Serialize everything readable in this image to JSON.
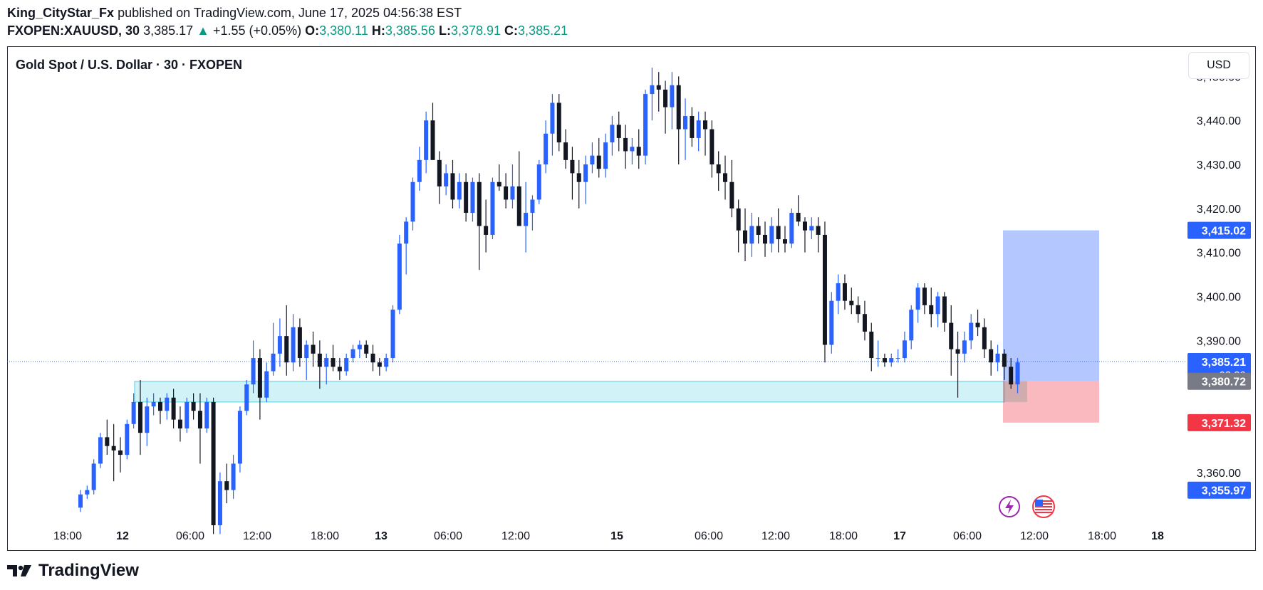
{
  "header": {
    "author": "King_CityStar_Fx",
    "published_text": "published on TradingView.com, June 17, 2025 04:56:38 EST",
    "symbol": "FXOPEN:XAUUSD, 30",
    "last": "3,385.17",
    "change": "+1.55 (+0.05%)",
    "o_label": "O:",
    "o": "3,380.11",
    "h_label": "H:",
    "h": "3,385.56",
    "l_label": "L:",
    "l": "3,378.91",
    "c_label": "C:",
    "c": "3,385.21"
  },
  "chart_title": "Gold Spot / U.S. Dollar · 30 · FXOPEN",
  "currency": "USD",
  "footer": {
    "brand": "TradingView"
  },
  "colors": {
    "up": "#2962ff",
    "down": "#131722",
    "zone": "#b2ebf2",
    "target": "#2962ff",
    "stop": "#f23645",
    "current": "#2962ff"
  },
  "chart_data": {
    "type": "candlestick",
    "ylim": [
      3348,
      3452
    ],
    "y_ticks": [
      "3,360.00",
      "3,390.00",
      "3,400.00",
      "3,410.00",
      "3,420.00",
      "3,430.00",
      "3,440.00",
      "3,450.00"
    ],
    "x_ticks": [
      "18:00",
      "12",
      "06:00",
      "12:00",
      "18:00",
      "13",
      "06:00",
      "12:00",
      "15",
      "06:00",
      "12:00",
      "18:00",
      "17",
      "06:00",
      "12:00",
      "18:00",
      "18"
    ],
    "bold_x_ticks": [
      "12",
      "13",
      "15",
      "17",
      "18"
    ],
    "candles": [
      [
        3352,
        3356,
        3351,
        3355
      ],
      [
        3355,
        3357,
        3354,
        3356
      ],
      [
        3356,
        3363,
        3355,
        3362
      ],
      [
        3362,
        3369,
        3361,
        3368
      ],
      [
        3368,
        3372,
        3364,
        3366
      ],
      [
        3366,
        3371,
        3358,
        3365
      ],
      [
        3365,
        3368,
        3360,
        3364
      ],
      [
        3364,
        3372,
        3363,
        3371
      ],
      [
        3371,
        3378,
        3370,
        3376
      ],
      [
        3376,
        3381,
        3364,
        3369
      ],
      [
        3369,
        3377,
        3366,
        3375
      ],
      [
        3375,
        3378,
        3373,
        3376
      ],
      [
        3376,
        3377,
        3371,
        3374
      ],
      [
        3374,
        3378,
        3372,
        3377
      ],
      [
        3377,
        3379,
        3370,
        3372
      ],
      [
        3372,
        3375,
        3367,
        3370
      ],
      [
        3370,
        3377,
        3369,
        3376
      ],
      [
        3376,
        3378,
        3372,
        3374
      ],
      [
        3374,
        3378,
        3362,
        3370
      ],
      [
        3370,
        3377,
        3369,
        3376
      ],
      [
        3376,
        3377,
        3346,
        3348
      ],
      [
        3348,
        3360,
        3346,
        3358
      ],
      [
        3358,
        3362,
        3353,
        3356
      ],
      [
        3356,
        3364,
        3354,
        3362
      ],
      [
        3362,
        3375,
        3360,
        3374
      ],
      [
        3374,
        3381,
        3373,
        3380
      ],
      [
        3380,
        3390,
        3378,
        3386
      ],
      [
        3386,
        3388,
        3372,
        3377
      ],
      [
        3377,
        3385,
        3376,
        3383
      ],
      [
        3383,
        3394,
        3382,
        3387
      ],
      [
        3387,
        3395,
        3384,
        3391
      ],
      [
        3391,
        3398,
        3382,
        3385
      ],
      [
        3385,
        3396,
        3383,
        3393
      ],
      [
        3393,
        3395,
        3384,
        3386
      ],
      [
        3386,
        3390,
        3381,
        3389
      ],
      [
        3389,
        3392,
        3384,
        3387
      ],
      [
        3387,
        3390,
        3379,
        3384
      ],
      [
        3384,
        3387,
        3380,
        3386
      ],
      [
        3386,
        3389,
        3383,
        3384
      ],
      [
        3384,
        3386,
        3381,
        3383
      ],
      [
        3383,
        3387,
        3382,
        3386
      ],
      [
        3386,
        3389,
        3385,
        3388
      ],
      [
        3388,
        3390,
        3386,
        3389
      ],
      [
        3389,
        3390,
        3386,
        3387
      ],
      [
        3387,
        3389,
        3383,
        3385
      ],
      [
        3385,
        3386,
        3382,
        3384
      ],
      [
        3384,
        3387,
        3383,
        3386
      ],
      [
        3386,
        3398,
        3385,
        3397
      ],
      [
        3397,
        3414,
        3396,
        3412
      ],
      [
        3412,
        3418,
        3405,
        3417
      ],
      [
        3417,
        3427,
        3415,
        3426
      ],
      [
        3426,
        3434,
        3424,
        3431
      ],
      [
        3431,
        3442,
        3428,
        3440
      ],
      [
        3440,
        3444,
        3432,
        3431
      ],
      [
        3431,
        3433,
        3421,
        3425
      ],
      [
        3425,
        3430,
        3423,
        3428
      ],
      [
        3428,
        3431,
        3420,
        3422
      ],
      [
        3422,
        3428,
        3420,
        3426
      ],
      [
        3426,
        3428,
        3417,
        3419
      ],
      [
        3419,
        3427,
        3417,
        3426
      ],
      [
        3426,
        3428,
        3406,
        3416
      ],
      [
        3416,
        3422,
        3410,
        3414
      ],
      [
        3414,
        3427,
        3413,
        3426
      ],
      [
        3426,
        3430,
        3424,
        3425
      ],
      [
        3425,
        3428,
        3420,
        3422
      ],
      [
        3422,
        3430,
        3420,
        3425
      ],
      [
        3425,
        3433,
        3417,
        3416
      ],
      [
        3416,
        3426,
        3410,
        3419
      ],
      [
        3419,
        3423,
        3415,
        3422
      ],
      [
        3422,
        3431,
        3421,
        3430
      ],
      [
        3430,
        3440,
        3428,
        3437
      ],
      [
        3437,
        3446,
        3432,
        3444
      ],
      [
        3444,
        3446,
        3433,
        3435
      ],
      [
        3435,
        3438,
        3429,
        3431
      ],
      [
        3431,
        3434,
        3422,
        3428
      ],
      [
        3428,
        3431,
        3420,
        3426
      ],
      [
        3426,
        3432,
        3421,
        3430
      ],
      [
        3430,
        3435,
        3428,
        3432
      ],
      [
        3432,
        3436,
        3427,
        3429
      ],
      [
        3429,
        3437,
        3427,
        3435
      ],
      [
        3435,
        3441,
        3432,
        3439
      ],
      [
        3439,
        3442,
        3433,
        3436
      ],
      [
        3436,
        3439,
        3429,
        3433
      ],
      [
        3433,
        3436,
        3430,
        3434
      ],
      [
        3434,
        3438,
        3429,
        3432
      ],
      [
        3432,
        3447,
        3430,
        3446
      ],
      [
        3446,
        3452,
        3440,
        3448
      ],
      [
        3448,
        3451,
        3442,
        3447
      ],
      [
        3447,
        3449,
        3437,
        3443
      ],
      [
        3443,
        3451,
        3438,
        3448
      ],
      [
        3448,
        3450,
        3430,
        3438
      ],
      [
        3438,
        3445,
        3431,
        3441
      ],
      [
        3441,
        3443,
        3434,
        3436
      ],
      [
        3436,
        3442,
        3433,
        3440
      ],
      [
        3440,
        3442,
        3432,
        3438
      ],
      [
        3438,
        3440,
        3427,
        3430
      ],
      [
        3430,
        3433,
        3424,
        3428
      ],
      [
        3428,
        3432,
        3422,
        3426
      ],
      [
        3426,
        3431,
        3418,
        3420
      ],
      [
        3420,
        3422,
        3410,
        3415
      ],
      [
        3415,
        3420,
        3408,
        3412
      ],
      [
        3412,
        3419,
        3409,
        3416
      ],
      [
        3416,
        3418,
        3412,
        3414
      ],
      [
        3414,
        3417,
        3409,
        3412
      ],
      [
        3412,
        3418,
        3410,
        3416
      ],
      [
        3416,
        3420,
        3410,
        3413
      ],
      [
        3413,
        3416,
        3410,
        3412
      ],
      [
        3412,
        3420,
        3411,
        3419
      ],
      [
        3419,
        3423,
        3416,
        3417
      ],
      [
        3417,
        3418,
        3410,
        3415
      ],
      [
        3415,
        3418,
        3413,
        3416
      ],
      [
        3416,
        3418,
        3410,
        3414
      ],
      [
        3414,
        3417,
        3385,
        3389
      ],
      [
        3389,
        3401,
        3387,
        3399
      ],
      [
        3399,
        3405,
        3396,
        3403
      ],
      [
        3403,
        3405,
        3397,
        3399
      ],
      [
        3399,
        3402,
        3396,
        3398
      ],
      [
        3398,
        3400,
        3394,
        3396
      ],
      [
        3396,
        3399,
        3390,
        3392
      ],
      [
        3392,
        3394,
        3383,
        3386
      ],
      [
        3386,
        3390,
        3384,
        3386
      ],
      [
        3386,
        3387,
        3384,
        3385
      ],
      [
        3385,
        3387,
        3384,
        3386
      ],
      [
        3386,
        3388,
        3385,
        3386
      ],
      [
        3386,
        3392,
        3385,
        3390
      ],
      [
        3390,
        3398,
        3388,
        3397
      ],
      [
        3397,
        3403,
        3394,
        3402
      ],
      [
        3402,
        3403,
        3396,
        3398
      ],
      [
        3398,
        3402,
        3393,
        3396
      ],
      [
        3396,
        3401,
        3393,
        3400
      ],
      [
        3400,
        3401,
        3392,
        3394
      ],
      [
        3394,
        3398,
        3382,
        3388
      ],
      [
        3388,
        3392,
        3377,
        3387
      ],
      [
        3387,
        3392,
        3385,
        3390
      ],
      [
        3390,
        3396,
        3388,
        3394
      ],
      [
        3394,
        3397,
        3391,
        3393
      ],
      [
        3393,
        3395,
        3386,
        3388
      ],
      [
        3388,
        3390,
        3382,
        3385
      ],
      [
        3385,
        3389,
        3383,
        3387
      ],
      [
        3387,
        3388,
        3381,
        3384
      ],
      [
        3384,
        3386,
        3379,
        3380
      ],
      [
        3380,
        3386,
        3378,
        3385
      ]
    ],
    "levels": {
      "target": "3,415.02",
      "current": "3,385.21",
      "countdown": "03:39",
      "entry": "3,380.72",
      "stop": "3,371.32",
      "low_marker": "3,355.97"
    },
    "zone": {
      "from": 3376,
      "to": 3380.7
    },
    "position": {
      "entry": 3380.72,
      "target": 3415.02,
      "stop": 3371.32
    }
  }
}
